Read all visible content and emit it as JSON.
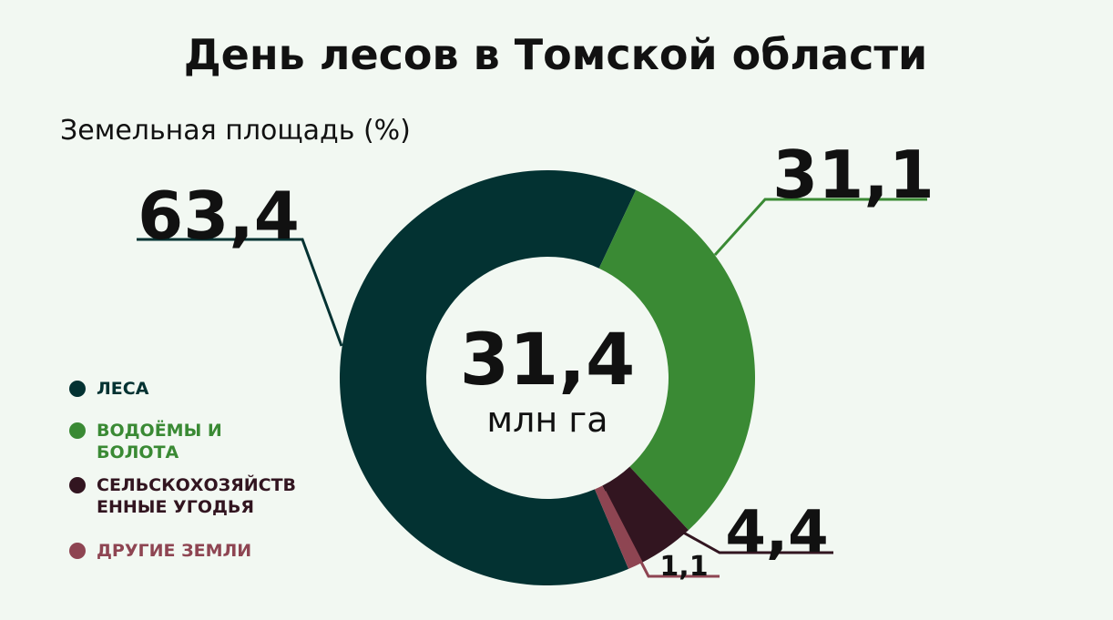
{
  "chart_data": {
    "type": "pie",
    "donut": true,
    "title": "День лесов в Томской области",
    "subtitle": "Земельная площадь (%)",
    "categories": [
      "ЛЕСА",
      "ВОДОЁМЫ И БОЛОТА",
      "СЕЛЬСКОХОЗЯЙСТВЕННЫЕ УГОДЬЯ",
      "ДРУГИЕ ЗЕМЛИ"
    ],
    "values": [
      63.4,
      31.1,
      4.4,
      1.1
    ],
    "value_labels": [
      "63,4",
      "31,1",
      "4,4",
      "1,1"
    ],
    "colors": [
      "#033232",
      "#3a8a34",
      "#321520",
      "#8e4552"
    ],
    "center_label": "31,4",
    "center_unit": "млн га"
  }
}
